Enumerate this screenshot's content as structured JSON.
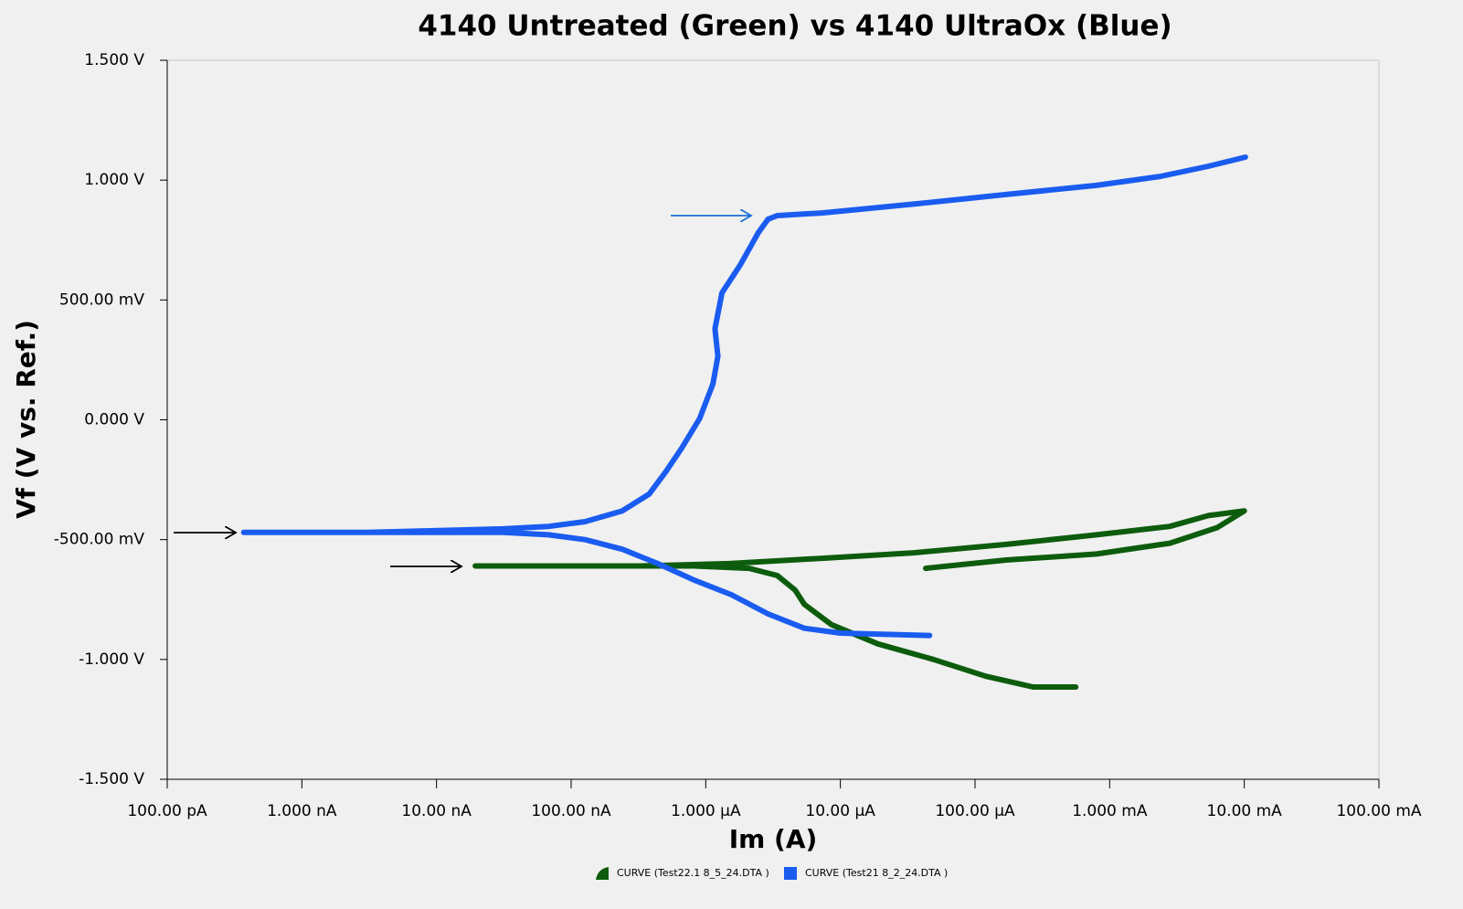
{
  "chart_data": {
    "type": "line",
    "title": "4140 Untreated (Green) vs 4140 UltraOx (Blue)",
    "x_label": "Im (A)",
    "y_label": "Vf (V vs. Ref.)",
    "xscale": "log",
    "xlim": [
      1e-10,
      0.1
    ],
    "xticks": [
      {
        "value": 1e-10,
        "label": "100.00 pA"
      },
      {
        "value": 1e-09,
        "label": "1.000 nA"
      },
      {
        "value": 1e-08,
        "label": "10.00 nA"
      },
      {
        "value": 1e-07,
        "label": "100.00 nA"
      },
      {
        "value": 1e-06,
        "label": "1.000 µA"
      },
      {
        "value": 1e-05,
        "label": "10.00 µA"
      },
      {
        "value": 0.0001,
        "label": "100.00 µA"
      },
      {
        "value": 0.001,
        "label": "1.000 mA"
      },
      {
        "value": 0.01,
        "label": "10.00 mA"
      },
      {
        "value": 0.1,
        "label": "100.00 mA"
      }
    ],
    "ylim": [
      -1.5,
      1.5
    ],
    "yticks": [
      {
        "value": 1.5,
        "label": "1.500 V"
      },
      {
        "value": 1,
        "label": "1.000 V"
      },
      {
        "value": 0.5,
        "label": "500.00 mV"
      },
      {
        "value": 0,
        "label": "0.000 V"
      },
      {
        "value": -0.5,
        "label": "-500.00 mV"
      },
      {
        "value": -1,
        "label": "-1.000 V"
      },
      {
        "value": -1.5,
        "label": "-1.500 V"
      }
    ],
    "grid": false,
    "series": [
      {
        "name": "CURVE (Test22.1 8_5_24.DTA )",
        "color": "#0d5c0d",
        "x": [
          0.00056,
          0.00027,
          0.00012,
          4.9e-05,
          1.9e-05,
          8.6e-06,
          5.4e-06,
          4.6e-06,
          3.4e-06,
          2.1e-06,
          8.2e-07,
          3.3e-07,
          6.8e-08,
          1.94e-08,
          3.3e-07,
          1.5e-06,
          7.3e-06,
          3.5e-05,
          0.00017,
          0.0008,
          0.0028,
          0.0054,
          0.01,
          0.0063,
          0.0028,
          0.0008,
          0.00017,
          4.3e-05
        ],
        "values": [
          -1.115,
          -1.115,
          -1.07,
          -1.0,
          -0.935,
          -0.855,
          -0.77,
          -0.71,
          -0.65,
          -0.62,
          -0.61,
          -0.61,
          -0.61,
          -0.61,
          -0.61,
          -0.6,
          -0.578,
          -0.555,
          -0.52,
          -0.48,
          -0.445,
          -0.4,
          -0.38,
          -0.45,
          -0.515,
          -0.56,
          -0.585,
          -0.62
        ]
      },
      {
        "name": "CURVE (Test21 8_2_24.DTA )",
        "color": "#1a5cf0",
        "x": [
          4.6e-05,
          1e-05,
          5.4e-06,
          2.9e-06,
          1.55e-06,
          8.3e-07,
          4.4e-07,
          2.4e-07,
          1.27e-07,
          6.8e-08,
          3.1e-08,
          1.4e-08,
          3e-09,
          3.7e-10,
          3e-09,
          3.1e-08,
          6.8e-08,
          1.27e-07,
          2.4e-07,
          3.8e-07,
          5e-07,
          6.6e-07,
          9e-07,
          1.13e-06,
          1.23e-06,
          1.17e-06,
          1.32e-06,
          1.8e-06,
          2.45e-06,
          2.9e-06,
          3.4e-06,
          7.3e-06,
          3.5e-05,
          0.00017,
          0.0008,
          0.0024,
          0.0054,
          0.0102
        ],
        "values": [
          -0.9,
          -0.89,
          -0.87,
          -0.81,
          -0.73,
          -0.67,
          -0.6,
          -0.54,
          -0.5,
          -0.48,
          -0.47,
          -0.47,
          -0.47,
          -0.47,
          -0.47,
          -0.455,
          -0.445,
          -0.425,
          -0.38,
          -0.31,
          -0.22,
          -0.12,
          0.005,
          0.15,
          0.265,
          0.38,
          0.53,
          0.645,
          0.78,
          0.837,
          0.852,
          0.863,
          0.9,
          0.94,
          0.978,
          1.016,
          1.058,
          1.096
        ]
      }
    ]
  }
}
